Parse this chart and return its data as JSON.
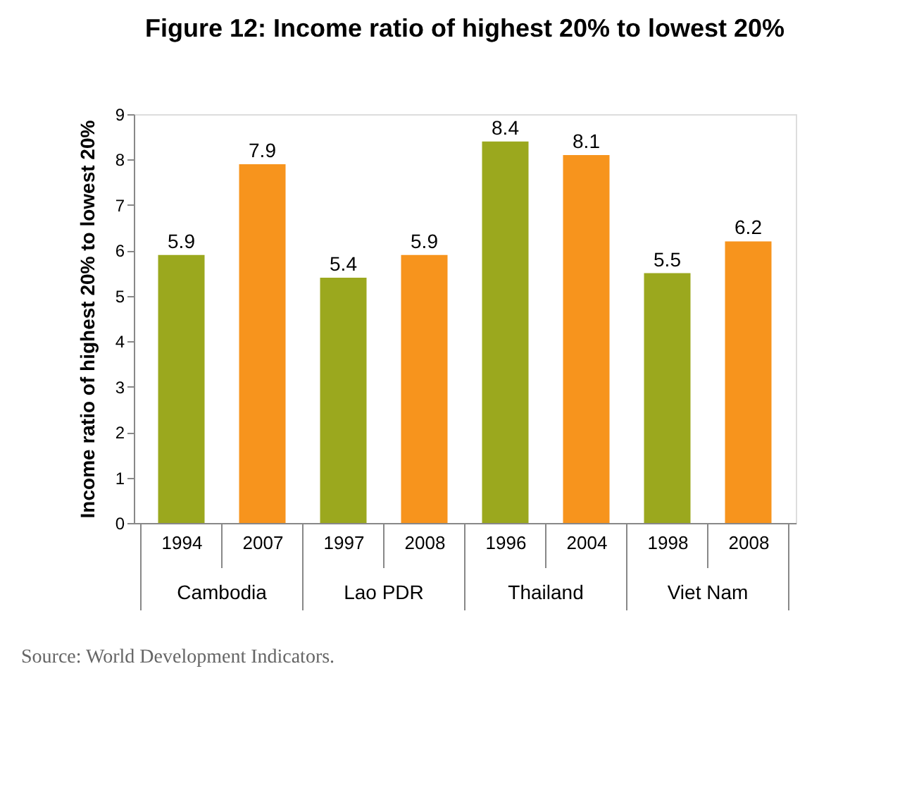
{
  "chart_data": {
    "type": "bar",
    "title": "Figure 12: Income ratio of highest 20% to lowest 20%",
    "ylabel": "Income ratio of highest 20% to lowest 20%",
    "categories": [
      "1994",
      "2007",
      "1997",
      "2008",
      "1996",
      "2004",
      "1998",
      "2008"
    ],
    "values": [
      5.9,
      7.9,
      5.4,
      5.9,
      8.4,
      8.1,
      5.5,
      6.2
    ],
    "colors": [
      "#9ba81e",
      "#f7941d",
      "#9ba81e",
      "#f7941d",
      "#9ba81e",
      "#f7941d",
      "#9ba81e",
      "#f7941d"
    ],
    "ylim": [
      0,
      9
    ],
    "yticks": [
      0,
      1,
      2,
      3,
      4,
      5,
      6,
      7,
      8,
      9
    ],
    "grid": false,
    "data_labels": true,
    "annotations": [
      "Cambodia",
      "Lao PDR",
      "Thailand",
      "Viet Nam",
      "Source: World Development Indicators."
    ]
  }
}
